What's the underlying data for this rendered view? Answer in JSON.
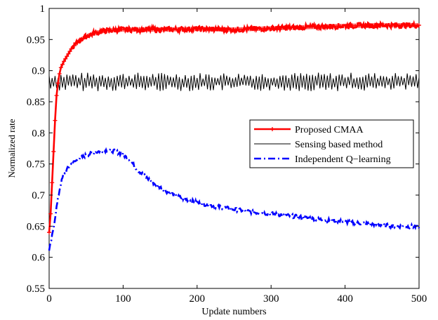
{
  "chart_data": {
    "type": "line",
    "title": "",
    "xlabel": "Update numbers",
    "ylabel": "Normalized rate",
    "xlim": [
      0,
      500
    ],
    "ylim": [
      0.55,
      1.0
    ],
    "x_ticks": [
      "0",
      "100",
      "200",
      "300",
      "400",
      "500"
    ],
    "y_ticks": [
      "0.55",
      "0.6",
      "0.65",
      "0.7",
      "0.75",
      "0.8",
      "0.85",
      "0.9",
      "0.95",
      "1"
    ],
    "grid": false,
    "legend_position": "right",
    "series": [
      {
        "name": "Proposed CMAA",
        "color": "#ff0000",
        "style": "solid-thick-plus-markers",
        "x": [
          0,
          2,
          4,
          6,
          8,
          10,
          12,
          14,
          16,
          18,
          20,
          25,
          30,
          40,
          50,
          60,
          75,
          100,
          150,
          200,
          250,
          300,
          350,
          400,
          450,
          500
        ],
        "y": [
          0.64,
          0.67,
          0.72,
          0.77,
          0.82,
          0.86,
          0.88,
          0.895,
          0.905,
          0.91,
          0.915,
          0.925,
          0.935,
          0.948,
          0.955,
          0.96,
          0.964,
          0.966,
          0.966,
          0.967,
          0.966,
          0.968,
          0.97,
          0.972,
          0.973,
          0.973
        ]
      },
      {
        "name": "Sensing based method",
        "color": "#000000",
        "style": "solid-thin-noisy",
        "x": [
          0,
          500
        ],
        "y": [
          0.882,
          0.882
        ]
      },
      {
        "name": "Independent Q−learning",
        "color": "#0000ff",
        "style": "dash-dot-thick",
        "x": [
          0,
          5,
          10,
          15,
          20,
          30,
          40,
          50,
          60,
          70,
          75,
          80,
          90,
          100,
          110,
          120,
          140,
          160,
          180,
          200,
          220,
          250,
          280,
          300,
          330,
          350,
          380,
          400,
          430,
          450,
          470,
          500
        ],
        "y": [
          0.61,
          0.64,
          0.68,
          0.715,
          0.735,
          0.75,
          0.758,
          0.764,
          0.768,
          0.771,
          0.772,
          0.772,
          0.77,
          0.765,
          0.755,
          0.74,
          0.72,
          0.705,
          0.695,
          0.688,
          0.683,
          0.677,
          0.672,
          0.67,
          0.666,
          0.663,
          0.659,
          0.657,
          0.654,
          0.652,
          0.65,
          0.649
        ]
      }
    ]
  }
}
